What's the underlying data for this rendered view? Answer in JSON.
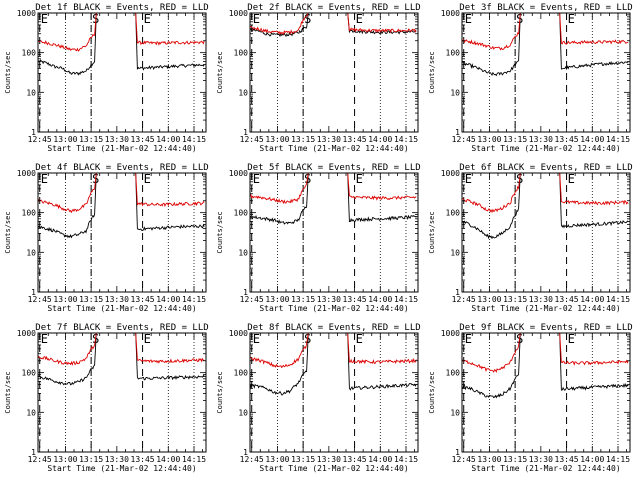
{
  "colors": {
    "events": "#000000",
    "lld": "#dd0000",
    "frame": "#000000",
    "background": "#ffffff"
  },
  "chart_data": [
    {
      "type": "line",
      "title": "Det 1f BLACK = Events, RED = LLD",
      "xlabel": "Start Time (21-Mar-02 12:44:40)",
      "ylabel": "Counts/sec",
      "yscale": "log",
      "ylim": [
        1,
        1000
      ],
      "x_tick_labels": [
        "12:45",
        "13:00",
        "13:15",
        "13:30",
        "13:45",
        "14:00",
        "14:15"
      ],
      "y_tick_labels": [
        "1",
        "10",
        "100",
        "1000"
      ],
      "markers": [
        {
          "label": "E",
          "time": "12:45",
          "style": "dashed"
        },
        {
          "label": "S",
          "time": "13:15",
          "style": "dashed"
        },
        {
          "label": "E",
          "time": "13:45",
          "style": "dashed"
        }
      ],
      "gridlines": [
        "13:00",
        "13:15",
        "14:00",
        "14:15"
      ],
      "gap": [
        "13:17",
        "13:42"
      ],
      "series": [
        {
          "name": "Events",
          "color": "#000000",
          "pre": [
            62,
            55,
            45,
            40,
            30,
            30,
            35,
            60
          ],
          "post": [
            40,
            42,
            44,
            46,
            48,
            50
          ]
        },
        {
          "name": "LLD",
          "color": "#dd0000",
          "pre": [
            190,
            180,
            160,
            140,
            120,
            120,
            150,
            300
          ],
          "post": [
            180,
            175,
            175,
            180,
            180,
            185
          ]
        }
      ]
    },
    {
      "type": "line",
      "title": "Det 2f BLACK = Events, RED = LLD",
      "xlabel": "Start Time (21-Mar-02 12:44:40)",
      "ylabel": "Counts/sec",
      "yscale": "log",
      "ylim": [
        1,
        1000
      ],
      "x_tick_labels": [
        "12:45",
        "13:00",
        "13:15",
        "13:30",
        "13:45",
        "14:00",
        "14:15"
      ],
      "y_tick_labels": [
        "1",
        "10",
        "100",
        "1000"
      ],
      "markers": [
        {
          "label": "E",
          "time": "12:45",
          "style": "dashed"
        },
        {
          "label": "S",
          "time": "13:15",
          "style": "dashed"
        },
        {
          "label": "E",
          "time": "13:45",
          "style": "dashed"
        }
      ],
      "gridlines": [
        "13:00",
        "13:15",
        "14:00",
        "14:15"
      ],
      "gap": [
        "13:17",
        "13:42"
      ],
      "series": [
        {
          "name": "Events",
          "color": "#000000",
          "pre": [
            380,
            350,
            300,
            280,
            280,
            290,
            320,
            450
          ],
          "post": [
            360,
            340,
            330,
            330,
            330,
            340
          ]
        },
        {
          "name": "LLD",
          "color": "#dd0000",
          "pre": [
            420,
            400,
            350,
            330,
            320,
            330,
            360,
            900
          ],
          "post": [
            380,
            370,
            360,
            360,
            360,
            370
          ]
        }
      ]
    },
    {
      "type": "line",
      "title": "Det 3f BLACK = Events, RED = LLD",
      "xlabel": "Start Time (21-Mar-02 12:44:40)",
      "ylabel": "Counts/sec",
      "yscale": "log",
      "ylim": [
        1,
        1000
      ],
      "x_tick_labels": [
        "12:45",
        "13:00",
        "13:15",
        "13:30",
        "13:45",
        "14:00",
        "14:15"
      ],
      "y_tick_labels": [
        "1",
        "10",
        "100",
        "1000"
      ],
      "markers": [
        {
          "label": "E",
          "time": "12:45",
          "style": "dashed"
        },
        {
          "label": "S",
          "time": "13:15",
          "style": "dashed"
        },
        {
          "label": "E",
          "time": "13:45",
          "style": "dashed"
        }
      ],
      "gridlines": [
        "13:00",
        "13:15",
        "14:00",
        "14:15"
      ],
      "gap": [
        "13:17",
        "13:42"
      ],
      "series": [
        {
          "name": "Events",
          "color": "#000000",
          "pre": [
            55,
            48,
            40,
            32,
            28,
            30,
            35,
            60
          ],
          "post": [
            40,
            44,
            48,
            52,
            55,
            58
          ]
        },
        {
          "name": "LLD",
          "color": "#dd0000",
          "pre": [
            200,
            190,
            170,
            150,
            130,
            130,
            160,
            320
          ],
          "post": [
            180,
            180,
            185,
            185,
            190,
            190
          ]
        }
      ]
    },
    {
      "type": "line",
      "title": "Det 4f BLACK = Events, RED = LLD",
      "xlabel": "Start Time (21-Mar-02 12:44:40)",
      "ylabel": "Counts/sec",
      "yscale": "log",
      "ylim": [
        1,
        1000
      ],
      "x_tick_labels": [
        "12:45",
        "13:00",
        "13:15",
        "13:30",
        "13:45",
        "14:00",
        "14:15"
      ],
      "y_tick_labels": [
        "1",
        "10",
        "100",
        "1000"
      ],
      "markers": [
        {
          "label": "E",
          "time": "12:45",
          "style": "dashed"
        },
        {
          "label": "S",
          "time": "13:15",
          "style": "dashed"
        },
        {
          "label": "E",
          "time": "13:45",
          "style": "dashed"
        }
      ],
      "gridlines": [
        "13:00",
        "13:15",
        "14:00",
        "14:15"
      ],
      "gap": [
        "13:17",
        "13:42"
      ],
      "series": [
        {
          "name": "Events",
          "color": "#000000",
          "pre": [
            45,
            40,
            35,
            28,
            25,
            28,
            35,
            90
          ],
          "post": [
            38,
            40,
            42,
            44,
            45,
            46
          ]
        },
        {
          "name": "LLD",
          "color": "#dd0000",
          "pre": [
            200,
            180,
            160,
            130,
            110,
            120,
            160,
            420
          ],
          "post": [
            170,
            160,
            160,
            165,
            170,
            175
          ]
        }
      ]
    },
    {
      "type": "line",
      "title": "Det 5f BLACK = Events, RED = LLD",
      "xlabel": "Start Time (21-Mar-02 12:44:40)",
      "ylabel": "Counts/sec",
      "yscale": "log",
      "ylim": [
        1,
        1000
      ],
      "x_tick_labels": [
        "12:45",
        "13:00",
        "13:15",
        "13:30",
        "13:45",
        "14:00",
        "14:15"
      ],
      "y_tick_labels": [
        "1",
        "10",
        "100",
        "1000"
      ],
      "markers": [
        {
          "label": "E",
          "time": "12:45",
          "style": "dashed"
        },
        {
          "label": "S",
          "time": "13:15",
          "style": "dashed"
        },
        {
          "label": "E",
          "time": "13:45",
          "style": "dashed"
        }
      ],
      "gridlines": [
        "13:00",
        "13:15",
        "14:00",
        "14:15"
      ],
      "gap": [
        "13:17",
        "13:42"
      ],
      "series": [
        {
          "name": "Events",
          "color": "#000000",
          "pre": [
            80,
            75,
            70,
            65,
            55,
            55,
            65,
            150
          ],
          "post": [
            65,
            68,
            70,
            72,
            75,
            78
          ]
        },
        {
          "name": "LLD",
          "color": "#dd0000",
          "pre": [
            260,
            250,
            230,
            210,
            190,
            190,
            220,
            500
          ],
          "post": [
            250,
            240,
            235,
            235,
            240,
            245
          ]
        }
      ]
    },
    {
      "type": "line",
      "title": "Det 6f BLACK = Events, RED = LLD",
      "xlabel": "Start Time (21-Mar-02 12:44:40)",
      "ylabel": "Counts/sec",
      "yscale": "log",
      "ylim": [
        1,
        1000
      ],
      "x_tick_labels": [
        "12:45",
        "13:00",
        "13:15",
        "13:30",
        "13:45",
        "14:00",
        "14:15"
      ],
      "y_tick_labels": [
        "1",
        "10",
        "100",
        "1000"
      ],
      "markers": [
        {
          "label": "E",
          "time": "12:45",
          "style": "dashed"
        },
        {
          "label": "S",
          "time": "13:15",
          "style": "dashed"
        },
        {
          "label": "E",
          "time": "13:45",
          "style": "dashed"
        }
      ],
      "gridlines": [
        "13:00",
        "13:15",
        "14:00",
        "14:15"
      ],
      "gap": [
        "13:17",
        "13:42"
      ],
      "series": [
        {
          "name": "Events",
          "color": "#000000",
          "pre": [
            60,
            50,
            38,
            26,
            24,
            30,
            45,
            120
          ],
          "post": [
            45,
            48,
            50,
            52,
            55,
            58
          ]
        },
        {
          "name": "LLD",
          "color": "#dd0000",
          "pre": [
            220,
            190,
            160,
            120,
            110,
            130,
            180,
            450
          ],
          "post": [
            190,
            180,
            175,
            175,
            180,
            185
          ]
        }
      ]
    },
    {
      "type": "line",
      "title": "Det 7f BLACK = Events, RED = LLD",
      "xlabel": "Start Time (21-Mar-02 12:44:40)",
      "ylabel": "Counts/sec",
      "yscale": "log",
      "ylim": [
        1,
        1000
      ],
      "x_tick_labels": [
        "12:45",
        "13:00",
        "13:15",
        "13:30",
        "13:45",
        "14:00",
        "14:15"
      ],
      "y_tick_labels": [
        "1",
        "10",
        "100",
        "1000"
      ],
      "markers": [
        {
          "label": "E",
          "time": "12:45",
          "style": "dashed"
        },
        {
          "label": "S",
          "time": "13:15",
          "style": "dashed"
        },
        {
          "label": "E",
          "time": "13:45",
          "style": "dashed"
        }
      ],
      "gridlines": [
        "13:00",
        "13:15",
        "14:00",
        "14:15"
      ],
      "gap": [
        "13:17",
        "13:42"
      ],
      "series": [
        {
          "name": "Events",
          "color": "#000000",
          "pre": [
            80,
            72,
            62,
            55,
            52,
            58,
            75,
            150
          ],
          "post": [
            72,
            72,
            74,
            76,
            78,
            80
          ]
        },
        {
          "name": "LLD",
          "color": "#dd0000",
          "pre": [
            250,
            230,
            200,
            180,
            170,
            180,
            230,
            500
          ],
          "post": [
            200,
            195,
            195,
            200,
            205,
            210
          ]
        }
      ]
    },
    {
      "type": "line",
      "title": "Det 8f BLACK = Events, RED = LLD",
      "xlabel": "Start Time (21-Mar-02 12:44:40)",
      "ylabel": "Counts/sec",
      "yscale": "log",
      "ylim": [
        1,
        1000
      ],
      "x_tick_labels": [
        "12:45",
        "13:00",
        "13:15",
        "13:30",
        "13:45",
        "14:00",
        "14:15"
      ],
      "y_tick_labels": [
        "1",
        "10",
        "100",
        "1000"
      ],
      "markers": [
        {
          "label": "E",
          "time": "12:45",
          "style": "dashed"
        },
        {
          "label": "S",
          "time": "13:15",
          "style": "dashed"
        },
        {
          "label": "E",
          "time": "13:45",
          "style": "dashed"
        }
      ],
      "gridlines": [
        "13:00",
        "13:15",
        "14:00",
        "14:15"
      ],
      "gap": [
        "13:17",
        "13:42"
      ],
      "series": [
        {
          "name": "Events",
          "color": "#000000",
          "pre": [
            48,
            45,
            40,
            32,
            30,
            35,
            55,
            110
          ],
          "post": [
            40,
            42,
            44,
            46,
            48,
            50
          ]
        },
        {
          "name": "LLD",
          "color": "#dd0000",
          "pre": [
            230,
            210,
            180,
            150,
            140,
            160,
            220,
            480
          ],
          "post": [
            200,
            190,
            185,
            190,
            195,
            200
          ]
        }
      ]
    },
    {
      "type": "line",
      "title": "Det 9f BLACK = Events, RED = LLD",
      "xlabel": "Start Time (21-Mar-02 12:44:40)",
      "ylabel": "Counts/sec",
      "yscale": "log",
      "ylim": [
        1,
        1000
      ],
      "x_tick_labels": [
        "12:45",
        "13:00",
        "13:15",
        "13:30",
        "13:45",
        "14:00",
        "14:15"
      ],
      "y_tick_labels": [
        "1",
        "10",
        "100",
        "1000"
      ],
      "markers": [
        {
          "label": "E",
          "time": "12:45",
          "style": "dashed"
        },
        {
          "label": "S",
          "time": "13:15",
          "style": "dashed"
        },
        {
          "label": "E",
          "time": "13:45",
          "style": "dashed"
        }
      ],
      "gridlines": [
        "13:00",
        "13:15",
        "14:00",
        "14:15"
      ],
      "gap": [
        "13:17",
        "13:42"
      ],
      "series": [
        {
          "name": "Events",
          "color": "#000000",
          "pre": [
            45,
            40,
            32,
            26,
            24,
            28,
            40,
            90
          ],
          "post": [
            38,
            40,
            42,
            44,
            46,
            48
          ]
        },
        {
          "name": "LLD",
          "color": "#dd0000",
          "pre": [
            200,
            180,
            150,
            120,
            110,
            130,
            180,
            450
          ],
          "post": [
            180,
            175,
            175,
            180,
            185,
            190
          ]
        }
      ]
    }
  ]
}
